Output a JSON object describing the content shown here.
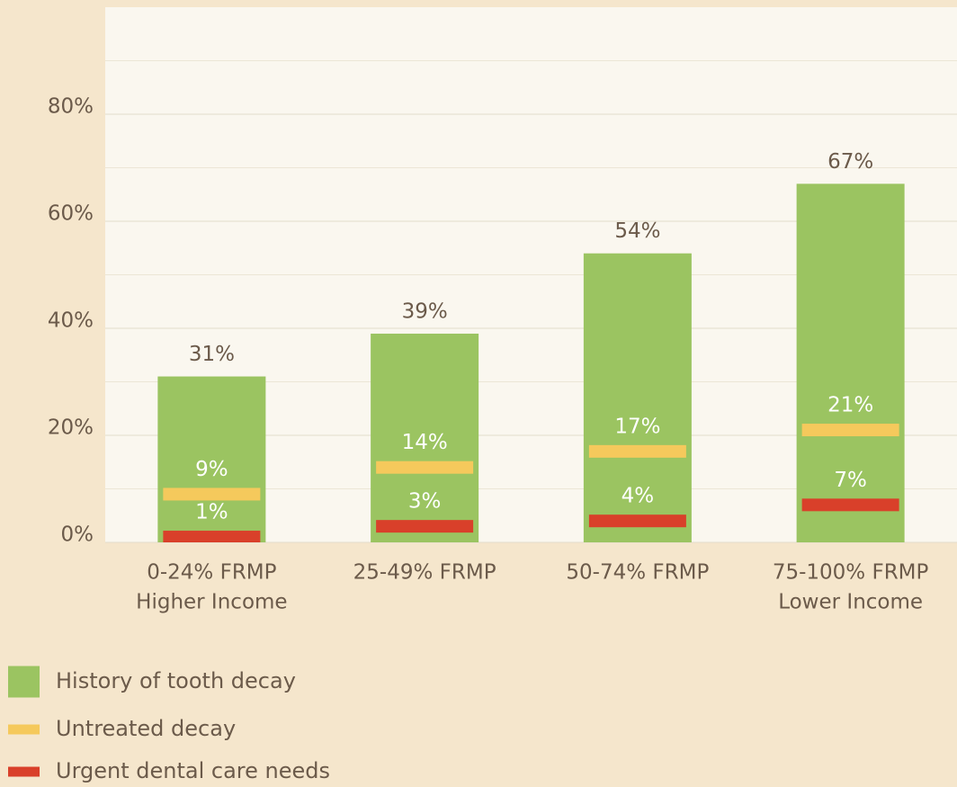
{
  "chart_data": {
    "type": "bar",
    "categories": [
      "0-24% FRMP",
      "25-49% FRMP",
      "50-74% FRMP",
      "75-100% FRMP"
    ],
    "category_sublabels": [
      "Higher Income",
      null,
      null,
      "Lower Income"
    ],
    "series": [
      {
        "name": "History of tooth decay",
        "color": "#9bc461",
        "style": "bar",
        "values": [
          31,
          39,
          54,
          67
        ],
        "value_labels": [
          "31%",
          "39%",
          "54%",
          "67%"
        ]
      },
      {
        "name": "Untreated decay",
        "color": "#f5c95c",
        "style": "marker",
        "values": [
          9,
          14,
          17,
          21
        ],
        "value_labels": [
          "9%",
          "14%",
          "17%",
          "21%"
        ]
      },
      {
        "name": "Urgent dental care needs",
        "color": "#d9402a",
        "style": "marker",
        "values": [
          1,
          3,
          4,
          7
        ],
        "value_labels": [
          "1%",
          "3%",
          "4%",
          "7%"
        ]
      }
    ],
    "ylim": [
      0,
      100
    ],
    "yticks": [
      {
        "value": 0,
        "label": "0%"
      },
      {
        "value": 20,
        "label": "20%"
      },
      {
        "value": 40,
        "label": "40%"
      },
      {
        "value": 60,
        "label": "60%"
      },
      {
        "value": 80,
        "label": "80%"
      }
    ],
    "yminor": [
      10,
      30,
      50,
      70,
      90
    ],
    "grid": true
  }
}
